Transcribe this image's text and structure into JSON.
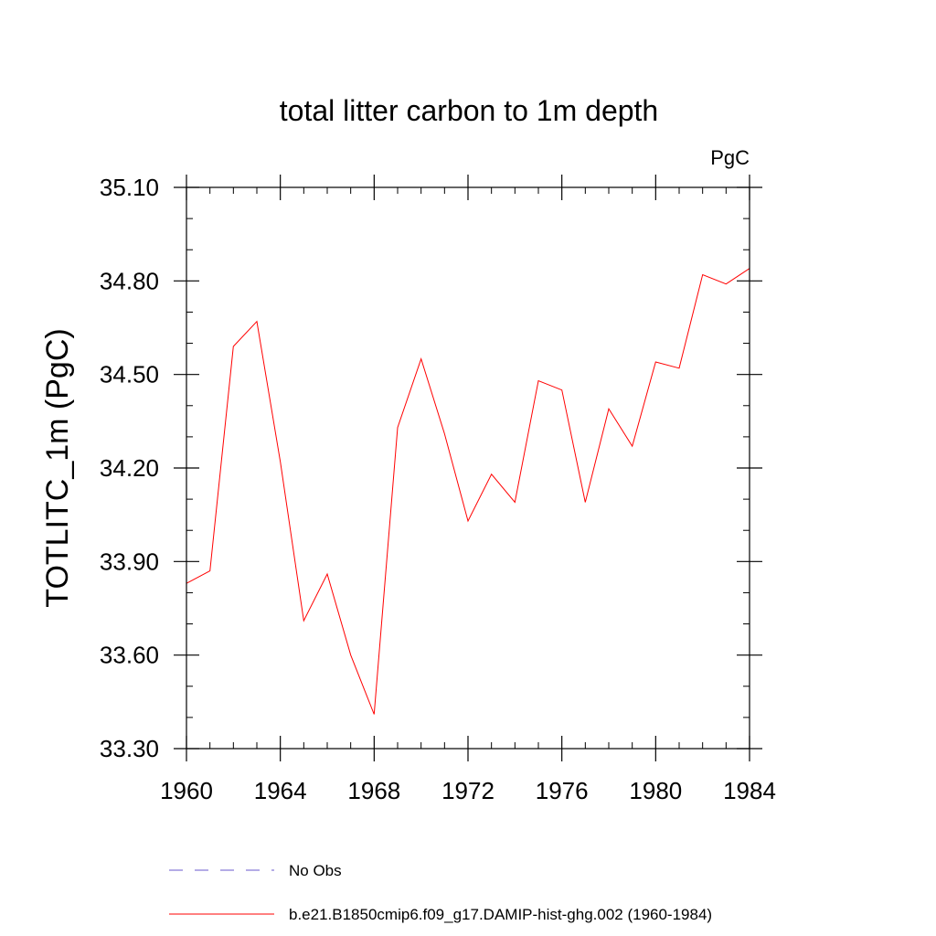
{
  "chart_data": {
    "type": "line",
    "title": "total litter carbon to 1m depth",
    "units_label": "PgC",
    "ylabel": "TOTLITC_1m  (PgC)",
    "xlabel": "",
    "xlim": [
      1960,
      1984
    ],
    "ylim": [
      33.3,
      35.1
    ],
    "x_ticks": [
      1960,
      1964,
      1968,
      1972,
      1976,
      1980,
      1984
    ],
    "x_tick_labels": [
      "1960",
      "1964",
      "1968",
      "1972",
      "1976",
      "1980",
      "1984"
    ],
    "y_ticks": [
      33.3,
      33.6,
      33.9,
      34.2,
      34.5,
      34.8,
      35.1
    ],
    "y_tick_labels": [
      "33.30",
      "33.60",
      "33.90",
      "34.20",
      "34.50",
      "34.80",
      "35.10"
    ],
    "x_minor_step": 1,
    "y_minor_step": 0.1,
    "grid": false,
    "legend_position": "bottom",
    "series": [
      {
        "name": "b.e21.B1850cmip6.f09_g17.DAMIP-hist-ghg.002 (1960-1984)",
        "color": "#ff0000",
        "style": "solid",
        "x": [
          1960,
          1961,
          1962,
          1963,
          1964,
          1965,
          1966,
          1967,
          1968,
          1969,
          1970,
          1971,
          1972,
          1973,
          1974,
          1975,
          1976,
          1977,
          1978,
          1979,
          1980,
          1981,
          1982,
          1983,
          1984
        ],
        "values": [
          33.83,
          33.87,
          34.59,
          34.67,
          34.22,
          33.71,
          33.86,
          33.6,
          33.41,
          34.33,
          34.55,
          34.31,
          34.03,
          34.18,
          34.09,
          34.48,
          34.45,
          34.09,
          34.39,
          34.27,
          34.54,
          34.52,
          34.82,
          34.79,
          34.84
        ]
      }
    ],
    "legend": [
      {
        "label": "No Obs",
        "color": "#6a5acd",
        "style": "dashed"
      },
      {
        "label": "b.e21.B1850cmip6.f09_g17.DAMIP-hist-ghg.002 (1960-1984)",
        "color": "#ff0000",
        "style": "solid"
      }
    ]
  }
}
